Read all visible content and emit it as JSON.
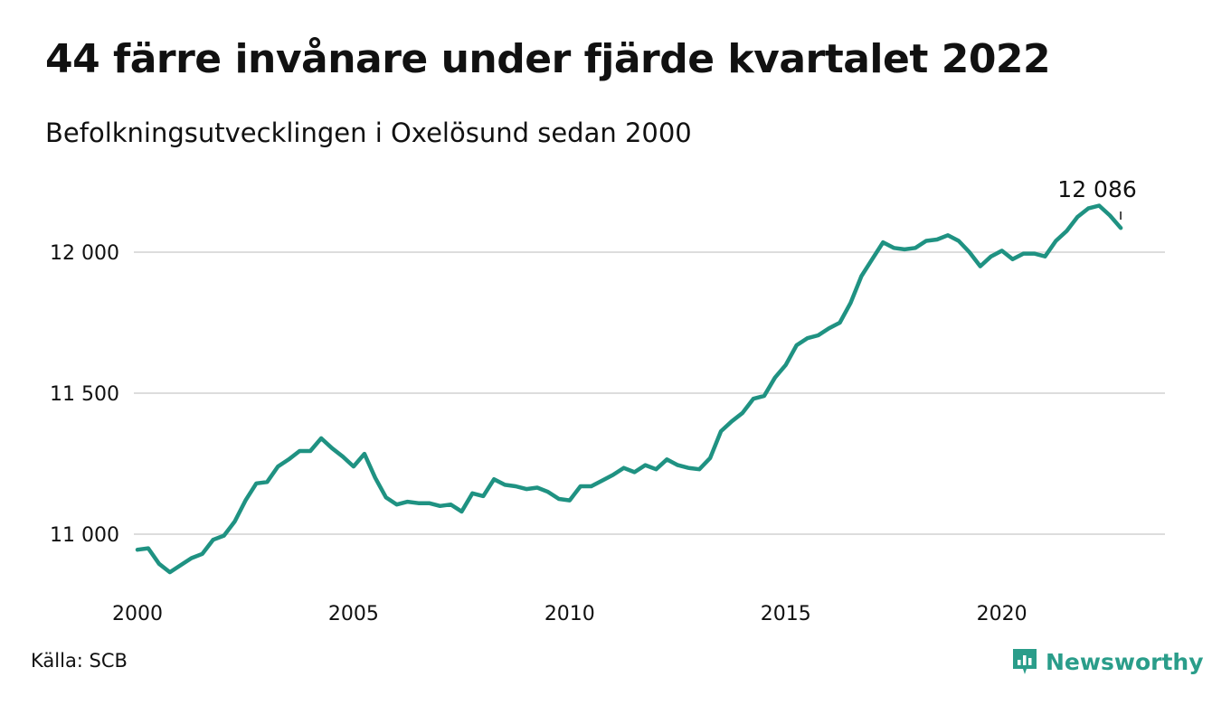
{
  "title": "44 färre invånare under fjärde kvartalet 2022",
  "subtitle": "Befolkningsutvecklingen i Oxelösund sedan 2000",
  "source": "Källa: SCB",
  "brand": {
    "name": "Newsworthy",
    "icon": "bar-chart-speech-bubble-icon"
  },
  "colors": {
    "line": "#1f9282",
    "grid": "#dddddd",
    "brand": "#2a9d8a"
  },
  "chart_data": {
    "type": "line",
    "xlabel": "",
    "ylabel": "",
    "x_ticks": [
      2000,
      2005,
      2010,
      2015,
      2020
    ],
    "y_ticks": [
      11000,
      11500,
      12000
    ],
    "y_tick_labels": [
      "11 000",
      "11 500",
      "12 000"
    ],
    "ylim": [
      10800,
      12200
    ],
    "xlim": [
      2000.0,
      2023.0
    ],
    "grid": true,
    "legend": "none",
    "end_label": "12 086",
    "series": [
      {
        "x": [
          "2000Q1",
          "2000Q2",
          "2000Q3",
          "2000Q4",
          "2001Q1",
          "2001Q2",
          "2001Q3",
          "2001Q4",
          "2002Q1",
          "2002Q2",
          "2002Q3",
          "2002Q4",
          "2003Q1",
          "2003Q2",
          "2003Q3",
          "2003Q4",
          "2004Q1",
          "2004Q2",
          "2004Q3",
          "2004Q4",
          "2005Q1",
          "2005Q2",
          "2005Q3",
          "2005Q4",
          "2006Q1",
          "2006Q2",
          "2006Q3",
          "2006Q4",
          "2007Q1",
          "2007Q2",
          "2007Q3",
          "2007Q4",
          "2008Q1",
          "2008Q2",
          "2008Q3",
          "2008Q4",
          "2009Q1",
          "2009Q2",
          "2009Q3",
          "2009Q4",
          "2010Q1",
          "2010Q2",
          "2010Q3",
          "2010Q4",
          "2011Q1",
          "2011Q2",
          "2011Q3",
          "2011Q4",
          "2012Q1",
          "2012Q2",
          "2012Q3",
          "2012Q4",
          "2013Q1",
          "2013Q2",
          "2013Q3",
          "2013Q4",
          "2014Q1",
          "2014Q2",
          "2014Q3",
          "2014Q4",
          "2015Q1",
          "2015Q2",
          "2015Q3",
          "2015Q4",
          "2016Q1",
          "2016Q2",
          "2016Q3",
          "2016Q4",
          "2017Q1",
          "2017Q2",
          "2017Q3",
          "2017Q4",
          "2018Q1",
          "2018Q2",
          "2018Q3",
          "2018Q4",
          "2019Q1",
          "2019Q2",
          "2019Q3",
          "2019Q4",
          "2020Q1",
          "2020Q2",
          "2020Q3",
          "2020Q4",
          "2021Q1",
          "2021Q2",
          "2021Q3",
          "2021Q4",
          "2022Q1",
          "2022Q2",
          "2022Q3",
          "2022Q4"
        ],
        "values": [
          10945,
          10950,
          10895,
          10865,
          10890,
          10915,
          10930,
          10980,
          10995,
          11045,
          11120,
          11180,
          11185,
          11240,
          11265,
          11295,
          11295,
          11340,
          11305,
          11275,
          11240,
          11285,
          11200,
          11130,
          11105,
          11115,
          11110,
          11110,
          11100,
          11105,
          11080,
          11145,
          11135,
          11195,
          11175,
          11170,
          11160,
          11165,
          11150,
          11125,
          11120,
          11170,
          11170,
          11190,
          11210,
          11235,
          11220,
          11245,
          11230,
          11265,
          11245,
          11235,
          11230,
          11270,
          11365,
          11400,
          11430,
          11480,
          11490,
          11555,
          11600,
          11670,
          11695,
          11705,
          11730,
          11750,
          11820,
          11915,
          11975,
          12035,
          12015,
          12010,
          12015,
          12040,
          12045,
          12060,
          12040,
          12000,
          11950,
          11985,
          12005,
          11975,
          11995,
          11995,
          11985,
          12040,
          12075,
          12125,
          12155,
          12165,
          12130,
          12086
        ]
      }
    ]
  }
}
